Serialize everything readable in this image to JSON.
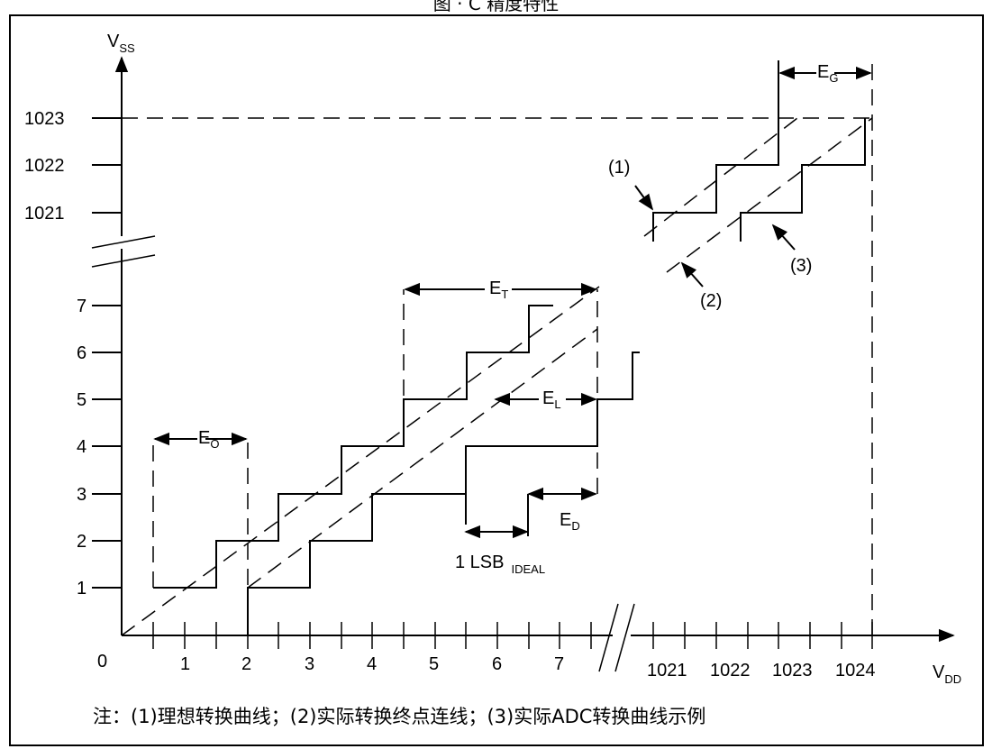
{
  "figure": {
    "top_caption_fragment": "图 · C 精度特性",
    "y_axis": {
      "name": "V",
      "sub": "SS",
      "ticks_lower": [
        "1",
        "2",
        "3",
        "4",
        "5",
        "6",
        "7"
      ],
      "ticks_upper": [
        "1021",
        "1022",
        "1023"
      ]
    },
    "x_axis": {
      "name": "V",
      "sub": "DD",
      "origin": "0",
      "ticks_lower": [
        "1",
        "2",
        "3",
        "4",
        "5",
        "6",
        "7"
      ],
      "ticks_upper": [
        "1021",
        "1022",
        "1023",
        "1024"
      ]
    },
    "error_labels": {
      "offset": {
        "name": "E",
        "sub": "O"
      },
      "gain": {
        "name": "E",
        "sub": "G"
      },
      "total": {
        "name": "E",
        "sub": "T"
      },
      "linearity": {
        "name": "E",
        "sub": "L"
      },
      "differential": {
        "name": "E",
        "sub": "D"
      }
    },
    "lsb_label": {
      "text": "1 LSB",
      "sub": "IDEAL"
    },
    "curve_markers": [
      "(1)",
      "(2)",
      "(3)"
    ],
    "note": "注：(1)理想转换曲线；(2)实际转换终点连线；(3)实际ADC转换曲线示例"
  }
}
